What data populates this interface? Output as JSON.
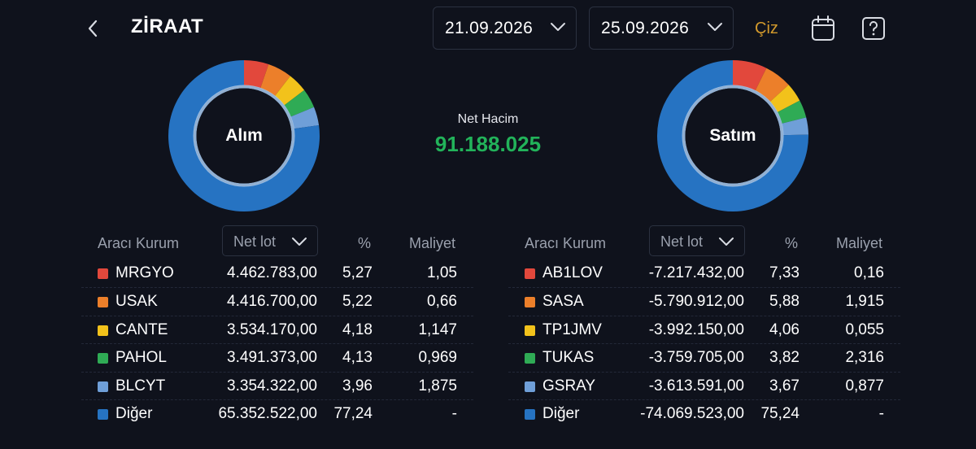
{
  "header": {
    "title": "ZİRAAT",
    "start_date": "21.09.2026",
    "end_date": "25.09.2026",
    "draw_label": "Çiz",
    "draw_color": "#d39a2c"
  },
  "summary": {
    "net_volume_label": "Net Hacim",
    "net_volume_value": "91.188.025",
    "net_volume_color": "#22b35a"
  },
  "colors": {
    "red": "#e2483c",
    "orange": "#ec7f2a",
    "yellow": "#f2c21b",
    "green": "#2fab55",
    "lightblue": "#6f9fd8",
    "blue": "#2673c2",
    "background": "#0f121c"
  },
  "buy": {
    "donut_label": "Alım",
    "headers": {
      "broker": "Aracı Kurum",
      "sort": "Net lot",
      "pct": "%",
      "cost": "Maliyet"
    },
    "rows": [
      {
        "name": "MRGYO",
        "lot": "4.462.783,00",
        "pct": "5,27",
        "cost": "1,05",
        "color": "#e2483c",
        "share": 5.27
      },
      {
        "name": "USAK",
        "lot": "4.416.700,00",
        "pct": "5,22",
        "cost": "0,66",
        "color": "#ec7f2a",
        "share": 5.22
      },
      {
        "name": "CANTE",
        "lot": "3.534.170,00",
        "pct": "4,18",
        "cost": "1,147",
        "color": "#f2c21b",
        "share": 4.18
      },
      {
        "name": "PAHOL",
        "lot": "3.491.373,00",
        "pct": "4,13",
        "cost": "0,969",
        "color": "#2fab55",
        "share": 4.13
      },
      {
        "name": "BLCYT",
        "lot": "3.354.322,00",
        "pct": "3,96",
        "cost": "1,875",
        "color": "#6f9fd8",
        "share": 3.96
      },
      {
        "name": "Diğer",
        "lot": "65.352.522,00",
        "pct": "77,24",
        "cost": "-",
        "color": "#2673c2",
        "share": 77.24
      }
    ]
  },
  "sell": {
    "donut_label": "Satım",
    "headers": {
      "broker": "Aracı Kurum",
      "sort": "Net lot",
      "pct": "%",
      "cost": "Maliyet"
    },
    "rows": [
      {
        "name": "AB1LOV",
        "lot": "-7.217.432,00",
        "pct": "7,33",
        "cost": "0,16",
        "color": "#e2483c",
        "share": 7.33
      },
      {
        "name": "SASA",
        "lot": "-5.790.912,00",
        "pct": "5,88",
        "cost": "1,915",
        "color": "#ec7f2a",
        "share": 5.88
      },
      {
        "name": "TP1JMV",
        "lot": "-3.992.150,00",
        "pct": "4,06",
        "cost": "0,055",
        "color": "#f2c21b",
        "share": 4.06
      },
      {
        "name": "TUKAS",
        "lot": "-3.759.705,00",
        "pct": "3,82",
        "cost": "2,316",
        "color": "#2fab55",
        "share": 3.82
      },
      {
        "name": "GSRAY",
        "lot": "-3.613.591,00",
        "pct": "3,67",
        "cost": "0,877",
        "color": "#6f9fd8",
        "share": 3.67
      },
      {
        "name": "Diğer",
        "lot": "-74.069.523,00",
        "pct": "75,24",
        "cost": "-",
        "color": "#2673c2",
        "share": 75.24
      }
    ]
  },
  "icons": [
    "chevron-left-icon",
    "chevron-down-icon",
    "calendar-icon",
    "help-icon"
  ]
}
